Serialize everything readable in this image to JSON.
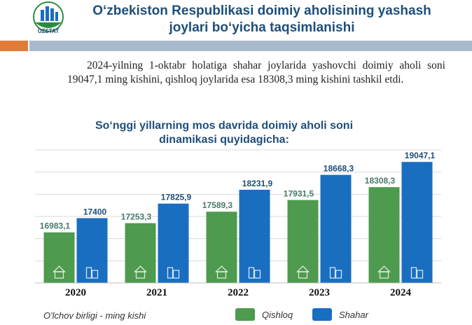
{
  "header": {
    "title": "O‘zbekiston Respublikasi  doimiy aholisining yashash joylari bo‘yicha taqsimlanishi",
    "logo_text": "UZSTAT"
  },
  "intro": {
    "text": "2024-yilning  1-oktabr holatiga shahar joylarida yashovchi doimiy aholi soni 19047,1 ming kishini, qishloq joylarida esa 18308,3 ming kishini tashkil etdi."
  },
  "chart_data": {
    "type": "bar",
    "title": "So‘nggi yillarning mos davrida doimiy aholi soni dinamikasi quyidagicha:",
    "categories": [
      "2020",
      "2021",
      "2022",
      "2023",
      "2024"
    ],
    "series": [
      {
        "name": "Qishloq",
        "values": [
          16983.1,
          17253.3,
          17589.3,
          17931.5,
          18308.3
        ],
        "labels": [
          "16983,1",
          "17253,3",
          "17589,3",
          "17931,5",
          "18308,3"
        ],
        "color": "#4e9a4e"
      },
      {
        "name": "Shahar",
        "values": [
          17400,
          17825.9,
          18231.9,
          18668.3,
          19047.1
        ],
        "labels": [
          "17400",
          "17825,9",
          "18231,9",
          "18668,3",
          "19047,1"
        ],
        "color": "#1a6ec0"
      }
    ],
    "ylim": [
      15500,
      19400
    ],
    "grid": true,
    "legend": "bottom"
  },
  "footer": {
    "unit": "O'lchov birligi - ming kishi"
  },
  "colors": {
    "title": "#1f4e79",
    "accent": "#e07b39",
    "rule": "#a9b9cc",
    "qishloq_label": "#4a7a6a",
    "shahar_label": "#1f4e79"
  }
}
